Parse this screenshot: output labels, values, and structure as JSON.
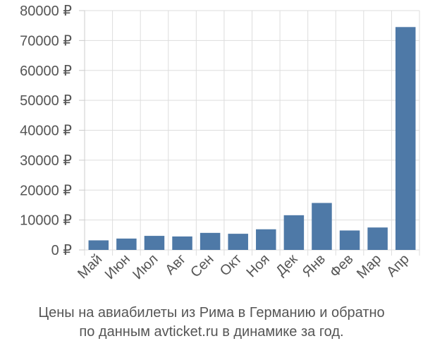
{
  "chart_data": {
    "type": "bar",
    "categories": [
      "Май",
      "Июн",
      "Июл",
      "Авг",
      "Сен",
      "Окт",
      "Ноя",
      "Дек",
      "Янв",
      "Фев",
      "Мар",
      "Апр"
    ],
    "values": [
      3200,
      3800,
      4700,
      4500,
      5700,
      5400,
      6900,
      11600,
      15700,
      6500,
      7500,
      74500
    ],
    "ylim": [
      0,
      80000
    ],
    "yticks": [
      0,
      10000,
      20000,
      30000,
      40000,
      50000,
      60000,
      70000,
      80000
    ],
    "ytick_labels": [
      "0 ₽",
      "10000 ₽",
      "20000 ₽",
      "30000 ₽",
      "40000 ₽",
      "50000 ₽",
      "60000 ₽",
      "70000 ₽",
      "80000 ₽"
    ],
    "grid": true,
    "bar_color": "#4e79a7"
  },
  "caption": {
    "line1": "Цены на авиабилеты из Рима в Германию и обратно",
    "line2": "по данным avticket.ru в динамике за год."
  }
}
